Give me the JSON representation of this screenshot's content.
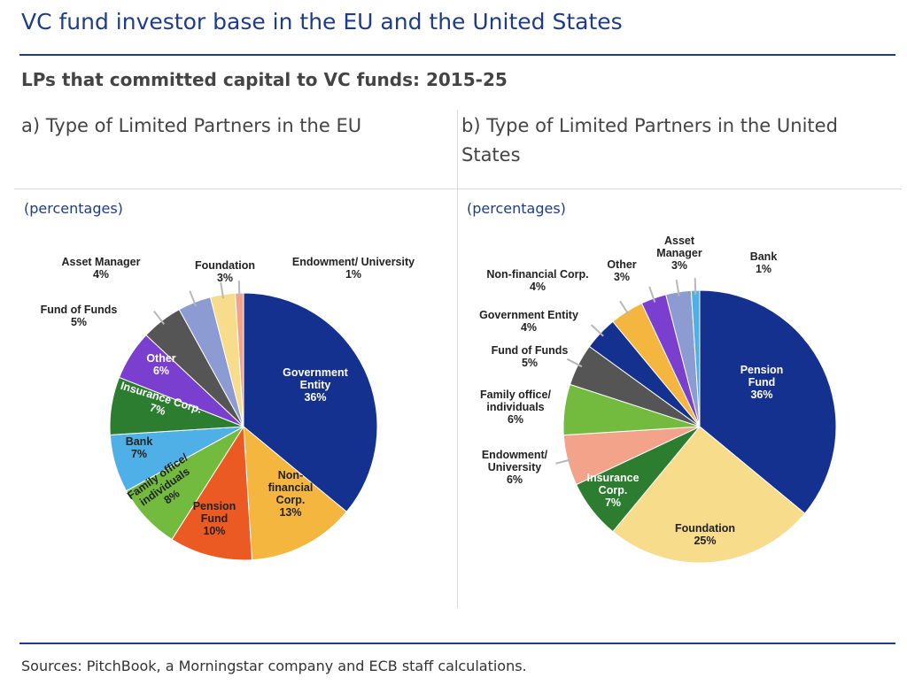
{
  "title": "VC fund investor base in the EU and the United States",
  "subtitle": "LPs that committed capital to VC funds: 2015-25",
  "source": "Sources: PitchBook, a Morningstar company and ECB staff calculations.",
  "chart_data": [
    {
      "type": "pie",
      "title": "a) Type of Limited Partners in the EU",
      "unit": "(percentages)",
      "slices": [
        {
          "label": "Government Entity",
          "value": 36,
          "color": "#14318f",
          "label_color": "#ffffff"
        },
        {
          "label": "Non-financial Corp.",
          "value": 13,
          "color": "#f4b63f",
          "label_color": "#222222"
        },
        {
          "label": "Pension Fund",
          "value": 10,
          "color": "#ec5a24",
          "label_color": "#222222"
        },
        {
          "label": "Family office/ individuals",
          "value": 8,
          "color": "#72bb3f",
          "label_color": "#222222"
        },
        {
          "label": "Bank",
          "value": 7,
          "color": "#4eb0e6",
          "label_color": "#222222"
        },
        {
          "label": "Insurance Corp.",
          "value": 7,
          "color": "#2d7d31",
          "label_color": "#ffffff"
        },
        {
          "label": "Other",
          "value": 6,
          "color": "#7a3fcf",
          "label_color": "#ffffff"
        },
        {
          "label": "Fund of Funds",
          "value": 5,
          "color": "#555555",
          "label_color": "#222222"
        },
        {
          "label": "Asset Manager",
          "value": 4,
          "color": "#8c9bd2",
          "label_color": "#222222"
        },
        {
          "label": "Foundation",
          "value": 3,
          "color": "#f7dc8c",
          "label_color": "#222222"
        },
        {
          "label": "Endowment/ University",
          "value": 1,
          "color": "#f2a38a",
          "label_color": "#222222"
        }
      ]
    },
    {
      "type": "pie",
      "title": "b) Type of Limited Partners in the United States",
      "unit": "(percentages)",
      "slices": [
        {
          "label": "Pension Fund",
          "value": 36,
          "color": "#14318f",
          "label_color": "#ffffff"
        },
        {
          "label": "Foundation",
          "value": 25,
          "color": "#f7dc8c",
          "label_color": "#222222"
        },
        {
          "label": "Insurance Corp.",
          "value": 7,
          "color": "#2d7d31",
          "label_color": "#ffffff"
        },
        {
          "label": "Endowment/ University",
          "value": 6,
          "color": "#f2a38a",
          "label_color": "#222222"
        },
        {
          "label": "Family office/ individuals",
          "value": 6,
          "color": "#72bb3f",
          "label_color": "#222222"
        },
        {
          "label": "Fund of Funds",
          "value": 5,
          "color": "#555555",
          "label_color": "#222222"
        },
        {
          "label": "Government Entity",
          "value": 4,
          "color": "#14318f",
          "label_color": "#222222"
        },
        {
          "label": "Non-financial Corp.",
          "value": 4,
          "color": "#f4b63f",
          "label_color": "#222222"
        },
        {
          "label": "Other",
          "value": 3,
          "color": "#7a3fcf",
          "label_color": "#222222"
        },
        {
          "label": "Asset Manager",
          "value": 3,
          "color": "#8c9bd2",
          "label_color": "#222222"
        },
        {
          "label": "Bank",
          "value": 1,
          "color": "#4eb0e6",
          "label_color": "#222222"
        }
      ]
    }
  ]
}
